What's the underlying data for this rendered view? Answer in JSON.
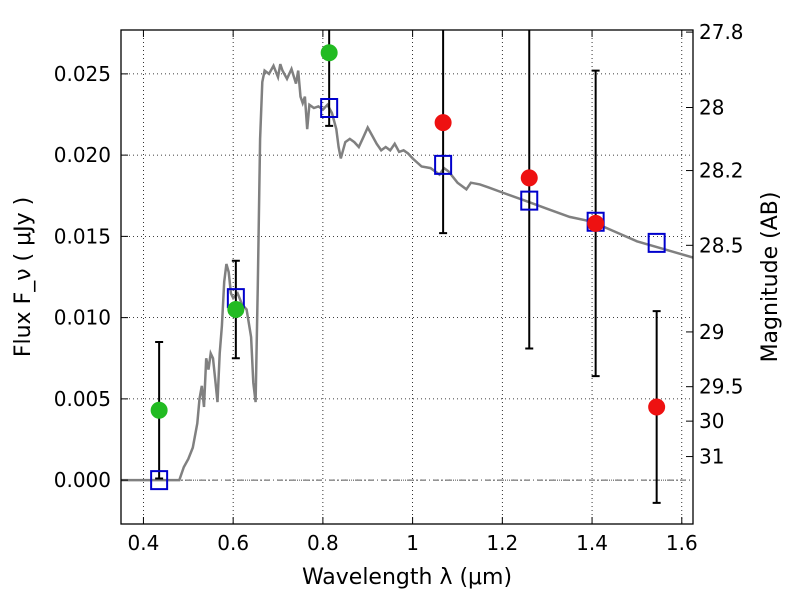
{
  "chart_data": {
    "type": "scatter",
    "xlabel": "Wavelength  λ (μm)",
    "ylabel": "Flux  F_ν  ( μJy )",
    "y2label": "Magnitude (AB)",
    "xlim": [
      0.35,
      1.625
    ],
    "ylim": [
      -0.0027,
      0.0277
    ],
    "grid": true,
    "x_ticks": [
      {
        "value": 0.4,
        "label": "0.4"
      },
      {
        "value": 0.6,
        "label": "0.6"
      },
      {
        "value": 0.8,
        "label": "0.8"
      },
      {
        "value": 1.0,
        "label": "1"
      },
      {
        "value": 1.2,
        "label": "1.2"
      },
      {
        "value": 1.4,
        "label": "1.4"
      },
      {
        "value": 1.6,
        "label": "1.6"
      }
    ],
    "y_ticks": [
      {
        "value": 0.0,
        "label": "0.000"
      },
      {
        "value": 0.005,
        "label": "0.005"
      },
      {
        "value": 0.01,
        "label": "0.010"
      },
      {
        "value": 0.015,
        "label": "0.015"
      },
      {
        "value": 0.02,
        "label": "0.020"
      },
      {
        "value": 0.025,
        "label": "0.025"
      }
    ],
    "y2_ticks": [
      {
        "flux": 0.02757,
        "label": "27.8"
      },
      {
        "flux": 0.02293,
        "label": "28"
      },
      {
        "flux": 0.01905,
        "label": "28.2"
      },
      {
        "flux": 0.01445,
        "label": "28.5"
      },
      {
        "flux": 0.00912,
        "label": "29"
      },
      {
        "flux": 0.00575,
        "label": "29.5"
      },
      {
        "flux": 0.00363,
        "label": "30"
      },
      {
        "flux": 0.00145,
        "label": "31"
      }
    ],
    "colors": {
      "sed": "#808080",
      "model_square": "#0000cc",
      "detection": "#22bb22",
      "non_detection": "#ee1111",
      "errorbar": "#000000"
    },
    "sed_curve": [
      [
        0.35,
        0.0
      ],
      [
        0.47,
        0.0
      ],
      [
        0.48,
        0.0
      ],
      [
        0.49,
        0.0008
      ],
      [
        0.5,
        0.0013
      ],
      [
        0.51,
        0.002
      ],
      [
        0.52,
        0.0035
      ],
      [
        0.525,
        0.005
      ],
      [
        0.53,
        0.0058
      ],
      [
        0.535,
        0.0045
      ],
      [
        0.54,
        0.0075
      ],
      [
        0.545,
        0.0068
      ],
      [
        0.55,
        0.0078
      ],
      [
        0.555,
        0.0075
      ],
      [
        0.56,
        0.0062
      ],
      [
        0.565,
        0.0048
      ],
      [
        0.57,
        0.0078
      ],
      [
        0.575,
        0.0095
      ],
      [
        0.58,
        0.0122
      ],
      [
        0.585,
        0.0133
      ],
      [
        0.59,
        0.0128
      ],
      [
        0.595,
        0.0115
      ],
      [
        0.6,
        0.0112
      ],
      [
        0.61,
        0.0115
      ],
      [
        0.62,
        0.0108
      ],
      [
        0.63,
        0.0105
      ],
      [
        0.64,
        0.0088
      ],
      [
        0.645,
        0.006
      ],
      [
        0.65,
        0.0048
      ],
      [
        0.655,
        0.012
      ],
      [
        0.66,
        0.021
      ],
      [
        0.665,
        0.0245
      ],
      [
        0.67,
        0.0252
      ],
      [
        0.68,
        0.025
      ],
      [
        0.69,
        0.0255
      ],
      [
        0.7,
        0.0248
      ],
      [
        0.705,
        0.0256
      ],
      [
        0.71,
        0.0252
      ],
      [
        0.72,
        0.0247
      ],
      [
        0.73,
        0.0253
      ],
      [
        0.74,
        0.0244
      ],
      [
        0.745,
        0.0252
      ],
      [
        0.75,
        0.0236
      ],
      [
        0.755,
        0.0232
      ],
      [
        0.76,
        0.0236
      ],
      [
        0.765,
        0.0216
      ],
      [
        0.77,
        0.0231
      ],
      [
        0.78,
        0.0229
      ],
      [
        0.79,
        0.023
      ],
      [
        0.8,
        0.0228
      ],
      [
        0.81,
        0.0231
      ],
      [
        0.82,
        0.0226
      ],
      [
        0.83,
        0.0216
      ],
      [
        0.835,
        0.0205
      ],
      [
        0.84,
        0.0198
      ],
      [
        0.85,
        0.0208
      ],
      [
        0.86,
        0.021
      ],
      [
        0.87,
        0.0208
      ],
      [
        0.88,
        0.0205
      ],
      [
        0.89,
        0.0211
      ],
      [
        0.9,
        0.0217
      ],
      [
        0.91,
        0.0212
      ],
      [
        0.92,
        0.0207
      ],
      [
        0.93,
        0.0203
      ],
      [
        0.94,
        0.0205
      ],
      [
        0.95,
        0.0203
      ],
      [
        0.96,
        0.0207
      ],
      [
        0.97,
        0.0202
      ],
      [
        0.98,
        0.0203
      ],
      [
        0.99,
        0.0201
      ],
      [
        1.0,
        0.0198
      ],
      [
        1.02,
        0.0193
      ],
      [
        1.04,
        0.0192
      ],
      [
        1.06,
        0.0188
      ],
      [
        1.07,
        0.0192
      ],
      [
        1.08,
        0.019
      ],
      [
        1.1,
        0.0183
      ],
      [
        1.12,
        0.0179
      ],
      [
        1.13,
        0.0183
      ],
      [
        1.15,
        0.0182
      ],
      [
        1.17,
        0.018
      ],
      [
        1.2,
        0.0177
      ],
      [
        1.25,
        0.0172
      ],
      [
        1.3,
        0.0167
      ],
      [
        1.35,
        0.0162
      ],
      [
        1.4,
        0.0159
      ],
      [
        1.45,
        0.0153
      ],
      [
        1.5,
        0.0147
      ],
      [
        1.55,
        0.0143
      ],
      [
        1.6,
        0.0139
      ],
      [
        1.625,
        0.0137
      ]
    ],
    "model_squares": [
      {
        "x": 0.435,
        "y": 0.0
      },
      {
        "x": 0.606,
        "y": 0.0112
      },
      {
        "x": 0.814,
        "y": 0.0229
      },
      {
        "x": 1.068,
        "y": 0.0194
      },
      {
        "x": 1.26,
        "y": 0.0172
      },
      {
        "x": 1.408,
        "y": 0.0159
      },
      {
        "x": 1.544,
        "y": 0.0146
      }
    ],
    "photometry": [
      {
        "x": 0.435,
        "y": 0.0043,
        "err": 0.0042,
        "type": "detection"
      },
      {
        "x": 0.606,
        "y": 0.0105,
        "err": 0.003,
        "type": "detection"
      },
      {
        "x": 0.814,
        "y": 0.0263,
        "err": 0.0045,
        "type": "detection"
      },
      {
        "x": 1.068,
        "y": 0.022,
        "err": 0.0068,
        "type": "non_detection"
      },
      {
        "x": 1.26,
        "y": 0.0186,
        "err": 0.0105,
        "type": "non_detection"
      },
      {
        "x": 1.408,
        "y": 0.0158,
        "err": 0.0094,
        "type": "non_detection"
      },
      {
        "x": 1.544,
        "y": 0.0045,
        "err": 0.0059,
        "type": "non_detection"
      }
    ]
  }
}
